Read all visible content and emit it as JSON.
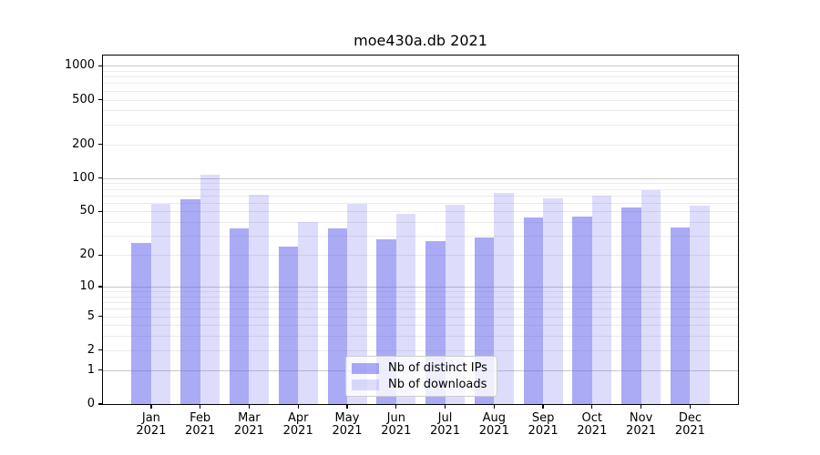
{
  "title": "moe430a.db 2021",
  "colors": {
    "bar_distinct_ips": "rgba(85,85,235,0.5)",
    "bar_downloads": "rgba(85,85,235,0.2)",
    "grid_major": "#c9c9c9",
    "grid_minor": "#ebebeb",
    "spine": "#000000",
    "text": "#000000",
    "legend_border": "#cccccc"
  },
  "chart_data": {
    "type": "bar",
    "title": "moe430a.db 2021",
    "categories": [
      "Jan",
      "Feb",
      "Mar",
      "Apr",
      "May",
      "Jun",
      "Jul",
      "Aug",
      "Sep",
      "Oct",
      "Nov",
      "Dec"
    ],
    "year_suffix": "2021",
    "series": [
      {
        "name": "Nb of distinct IPs",
        "color_key": "bar_distinct_ips",
        "values": [
          26,
          64,
          35,
          24,
          35,
          28,
          27,
          29,
          44,
          45,
          54,
          36
        ]
      },
      {
        "name": "Nb of downloads",
        "color_key": "bar_downloads",
        "values": [
          59,
          108,
          71,
          40,
          59,
          48,
          58,
          73,
          66,
          70,
          78,
          56
        ]
      }
    ],
    "xlabel": "",
    "ylabel": "",
    "y_axis": {
      "scale": "log1p",
      "min": 0,
      "max": 1232,
      "tick_values": [
        0,
        1,
        2,
        5,
        10,
        20,
        50,
        100,
        200,
        500,
        1000
      ],
      "major_gridlines": [
        1,
        10,
        100,
        1000
      ],
      "minor_gridlines": [
        2,
        3,
        4,
        5,
        6,
        7,
        8,
        9,
        20,
        30,
        40,
        50,
        60,
        70,
        80,
        90,
        200,
        300,
        400,
        500,
        600,
        700,
        800,
        900
      ]
    },
    "grid": true,
    "legend": {
      "position": "lower center",
      "entries": [
        "Nb of distinct IPs",
        "Nb of downloads"
      ]
    }
  }
}
